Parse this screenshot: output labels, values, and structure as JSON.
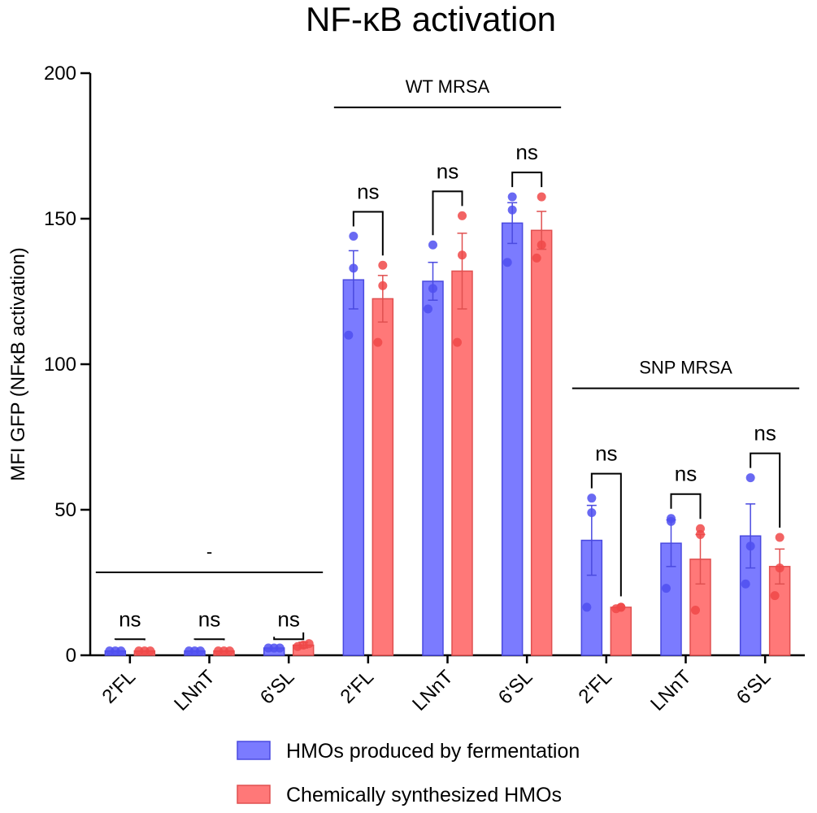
{
  "chart_data": {
    "type": "bar",
    "title": "NF-κB activation",
    "ylabel": "MFI GFP (NFκB activation)",
    "ylim": [
      0,
      200
    ],
    "yticks": [
      0,
      50,
      100,
      150,
      200
    ],
    "categories": [
      "2'FL",
      "LNnT",
      "6'SL",
      "2'FL",
      "LNnT",
      "6'SL",
      "2'FL",
      "LNnT",
      "6'SL"
    ],
    "groups": [
      {
        "label": "-",
        "category_indices": [
          0,
          1,
          2
        ]
      },
      {
        "label": "WT MRSA",
        "category_indices": [
          3,
          4,
          5
        ]
      },
      {
        "label": "SNP MRSA",
        "category_indices": [
          6,
          7,
          8
        ]
      }
    ],
    "series": [
      {
        "name": "HMOs produced by fermentation",
        "color": "#7b7bff",
        "edge": "#4a4ae0",
        "dot": "#4f4ff0",
        "values": [
          1.5,
          1.5,
          2.5,
          129,
          128.5,
          148.5,
          39.5,
          38.5,
          41
        ],
        "errors": [
          0.5,
          0.5,
          0.5,
          10,
          6.5,
          7,
          12,
          8,
          11
        ],
        "points": [
          [
            1.5,
            1.5,
            1.5
          ],
          [
            1.5,
            1.5,
            1.5
          ],
          [
            2.5,
            2.5,
            2.5
          ],
          [
            110,
            133,
            144
          ],
          [
            119,
            126,
            141
          ],
          [
            135,
            153,
            157.5
          ],
          [
            16.5,
            49,
            54
          ],
          [
            23,
            46,
            47
          ],
          [
            24.5,
            37.5,
            61
          ]
        ]
      },
      {
        "name": "Chemically synthesized HMOs",
        "color": "#ff7878",
        "edge": "#e05050",
        "dot": "#f04848",
        "values": [
          1.5,
          1.5,
          3.5,
          122.5,
          132,
          146,
          16.5,
          33,
          30.5
        ],
        "errors": [
          0.3,
          0.3,
          1,
          8,
          13,
          6.5,
          0.4,
          8.5,
          6
        ],
        "points": [
          [
            1.5,
            1.5,
            1.5
          ],
          [
            1.5,
            1.5,
            1.5
          ],
          [
            3,
            3.5,
            4
          ],
          [
            107.5,
            127,
            134
          ],
          [
            107.5,
            137.5,
            151
          ],
          [
            136.5,
            141,
            157.5
          ],
          [
            16,
            16.5,
            16.5
          ],
          [
            15.5,
            41.5,
            43.5
          ],
          [
            20.5,
            30,
            40.5
          ]
        ]
      }
    ],
    "significance": [
      "ns",
      "ns",
      "ns",
      "ns",
      "ns",
      "ns",
      "ns",
      "ns",
      "ns"
    ]
  }
}
